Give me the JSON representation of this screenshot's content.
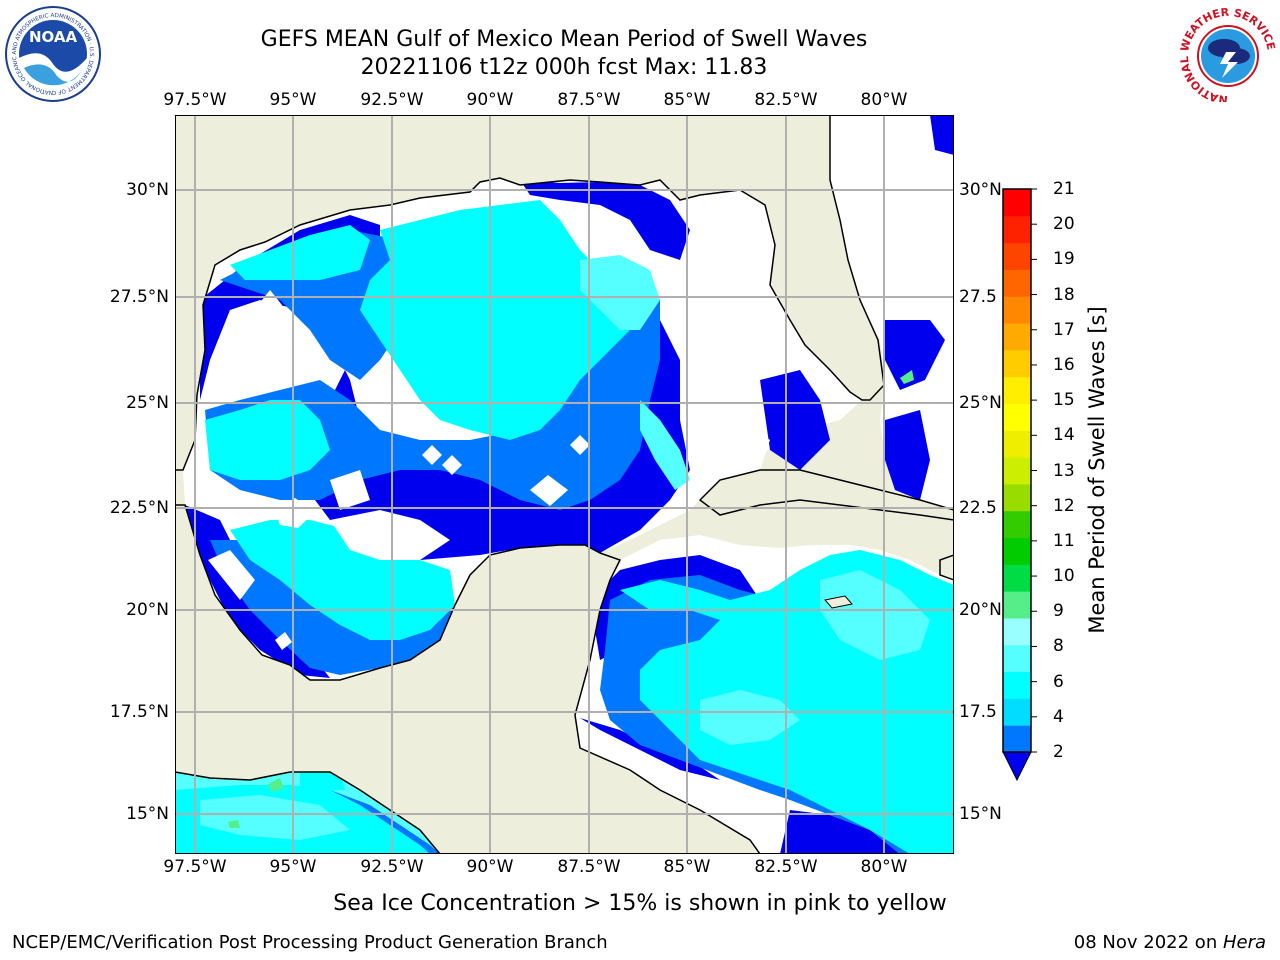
{
  "header": {
    "title": "GEFS MEAN Gulf of Mexico Mean Period of Swell Waves",
    "subtitle": "20221106 t12z 000h fcst   Max: 11.83"
  },
  "logos": {
    "left": "NOAA",
    "left_ring": "NATIONAL OCEANIC AND ATMOSPHERIC ADMINISTRATION · U.S. DEPARTMENT OF COMMERCE",
    "right_ring": "NATIONAL WEATHER SERVICE"
  },
  "map": {
    "longitude_ticks": [
      "97.5°W",
      "95°W",
      "92.5°W",
      "90°W",
      "87.5°W",
      "85°W",
      "82.5°W",
      "80°W"
    ],
    "latitude_ticks_left": [
      "30°N",
      "27.5°N",
      "25°N",
      "22.5°N",
      "20°N",
      "17.5°N",
      "15°N"
    ],
    "latitude_ticks_right": [
      "30°N",
      "27.5",
      "25°N",
      "22.5",
      "20°N",
      "17.5",
      "15°N"
    ],
    "extent": {
      "lon": [
        -98,
        -79
      ],
      "lat": [
        14,
        31.8
      ]
    },
    "grid": true,
    "land_color": "#eeeedd",
    "ocean_color": "#ffffff"
  },
  "colorbar": {
    "label": "Mean Period of Swell Waves [s]",
    "ticks": [
      "2",
      "4",
      "6",
      "8",
      "9",
      "10",
      "11",
      "12",
      "13",
      "14",
      "15",
      "16",
      "17",
      "18",
      "19",
      "20",
      "21"
    ],
    "colors": [
      "#0000ee",
      "#0077ff",
      "#00ddff",
      "#00ffff",
      "#55ffff",
      "#99ffff",
      "#55ee88",
      "#00dd44",
      "#00cc00",
      "#33cc00",
      "#99dd00",
      "#ccee00",
      "#eeee00",
      "#ffff00",
      "#ffee00",
      "#ffcc00",
      "#ffaa00",
      "#ff8800",
      "#ff6600",
      "#ff4400",
      "#ff2200",
      "#ff0000"
    ],
    "extend": "min",
    "placement": "right"
  },
  "note": "Sea Ice Concentration > 15% is shown in pink to yellow",
  "footer": {
    "left": "NCEP/EMC/Verification Post Processing Product Generation Branch",
    "date": "08 Nov 2022 on ",
    "machine": "Hera"
  }
}
